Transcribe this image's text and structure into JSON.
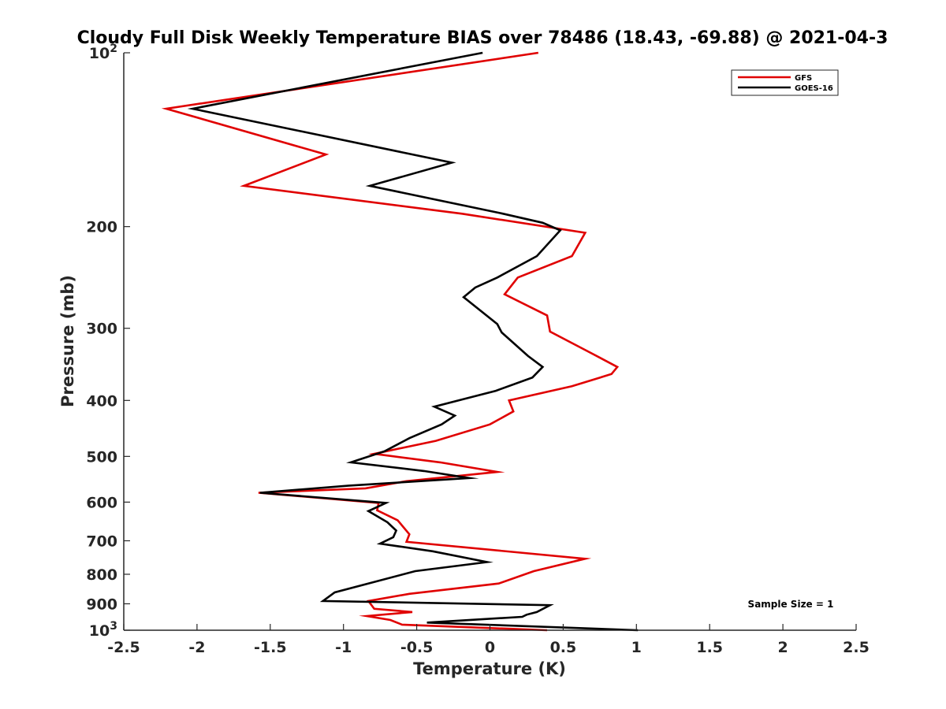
{
  "chart_data": {
    "type": "line",
    "title": "Cloudy Full Disk Weekly Temperature BIAS over 78486 (18.43, -69.88) @ 2021-04-3",
    "xlabel": "Temperature (K)",
    "ylabel": "Pressure (mb)",
    "xlim": [
      -2.5,
      2.5
    ],
    "ylim": [
      100,
      1000
    ],
    "y_scale": "log",
    "y_reversed": true,
    "x_ticks": [
      "-2.5",
      "-2",
      "-1.5",
      "-1",
      "-0.5",
      "0",
      "0.5",
      "1",
      "1.5",
      "2",
      "2.5"
    ],
    "y_ticks": [
      {
        "value": 100,
        "base": "10",
        "exp": "2"
      },
      {
        "value": 200,
        "label": "200"
      },
      {
        "value": 300,
        "label": "300"
      },
      {
        "value": 400,
        "label": "400"
      },
      {
        "value": 500,
        "label": "500"
      },
      {
        "value": 600,
        "label": "600"
      },
      {
        "value": 700,
        "label": "700"
      },
      {
        "value": 800,
        "label": "800"
      },
      {
        "value": 900,
        "label": "900"
      },
      {
        "value": 1000,
        "base": "10",
        "exp": "3"
      }
    ],
    "legend_position": "top-right",
    "grid": false,
    "annotation": "Sample Size = 1",
    "series": [
      {
        "name": "GFS",
        "color": "#e00000",
        "points": [
          [
            0.33,
            100
          ],
          [
            -2.21,
            125
          ],
          [
            -1.12,
            150
          ],
          [
            -1.68,
            170
          ],
          [
            -0.19,
            190
          ],
          [
            0.65,
            205
          ],
          [
            0.56,
            225
          ],
          [
            0.19,
            245
          ],
          [
            0.1,
            262
          ],
          [
            0.39,
            285
          ],
          [
            0.41,
            304
          ],
          [
            0.68,
            330
          ],
          [
            0.87,
            350
          ],
          [
            0.83,
            360
          ],
          [
            0.56,
            378
          ],
          [
            0.13,
            400
          ],
          [
            0.16,
            418
          ],
          [
            0.0,
            440
          ],
          [
            -0.37,
            470
          ],
          [
            -0.79,
            495
          ],
          [
            -0.34,
            512
          ],
          [
            0.05,
            532
          ],
          [
            -0.57,
            552
          ],
          [
            -0.85,
            568
          ],
          [
            -1.58,
            578
          ],
          [
            -0.76,
            602
          ],
          [
            -0.77,
            620
          ],
          [
            -0.63,
            645
          ],
          [
            -0.55,
            682
          ],
          [
            -0.57,
            703
          ],
          [
            0.65,
            752
          ],
          [
            0.3,
            790
          ],
          [
            0.06,
            830
          ],
          [
            -0.55,
            865
          ],
          [
            -0.83,
            890
          ],
          [
            -0.79,
            918
          ],
          [
            -0.53,
            930
          ],
          [
            -0.84,
            945
          ],
          [
            -0.68,
            960
          ],
          [
            -0.6,
            978
          ],
          [
            0.39,
            1000
          ]
        ]
      },
      {
        "name": "GOES-16",
        "color": "#000000",
        "points": [
          [
            -0.05,
            100
          ],
          [
            -2.03,
            125
          ],
          [
            -0.26,
            155
          ],
          [
            -0.82,
            170
          ],
          [
            0.09,
            190
          ],
          [
            0.36,
            197
          ],
          [
            0.48,
            203
          ],
          [
            0.32,
            225
          ],
          [
            0.05,
            245
          ],
          [
            -0.1,
            255
          ],
          [
            -0.18,
            265
          ],
          [
            0.05,
            295
          ],
          [
            0.08,
            305
          ],
          [
            0.26,
            335
          ],
          [
            0.36,
            350
          ],
          [
            0.29,
            365
          ],
          [
            0.04,
            385
          ],
          [
            -0.38,
            410
          ],
          [
            -0.24,
            425
          ],
          [
            -0.33,
            440
          ],
          [
            -0.55,
            465
          ],
          [
            -0.72,
            490
          ],
          [
            -0.95,
            512
          ],
          [
            -0.45,
            530
          ],
          [
            -0.14,
            545
          ],
          [
            -0.97,
            562
          ],
          [
            -1.57,
            578
          ],
          [
            -0.71,
            602
          ],
          [
            -0.83,
            622
          ],
          [
            -0.7,
            650
          ],
          [
            -0.64,
            672
          ],
          [
            -0.66,
            690
          ],
          [
            -0.75,
            708
          ],
          [
            -0.39,
            730
          ],
          [
            -0.02,
            762
          ],
          [
            -0.51,
            790
          ],
          [
            -1.06,
            860
          ],
          [
            -1.14,
            890
          ],
          [
            0.41,
            905
          ],
          [
            0.32,
            930
          ],
          [
            0.25,
            940
          ],
          [
            0.22,
            948
          ],
          [
            -0.43,
            970
          ],
          [
            1.01,
            1000
          ]
        ]
      }
    ]
  }
}
